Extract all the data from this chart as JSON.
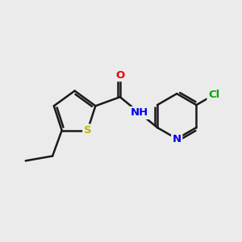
{
  "background_color": "#ebebeb",
  "bond_color": "#1a1a1a",
  "S_color": "#b8b800",
  "N_color": "#0000ee",
  "O_color": "#ee0000",
  "Cl_color": "#00aa00",
  "line_width": 1.8,
  "figsize": [
    3.0,
    3.0
  ],
  "dpi": 100,
  "xlim": [
    0,
    10
  ],
  "ylim": [
    0,
    10
  ]
}
